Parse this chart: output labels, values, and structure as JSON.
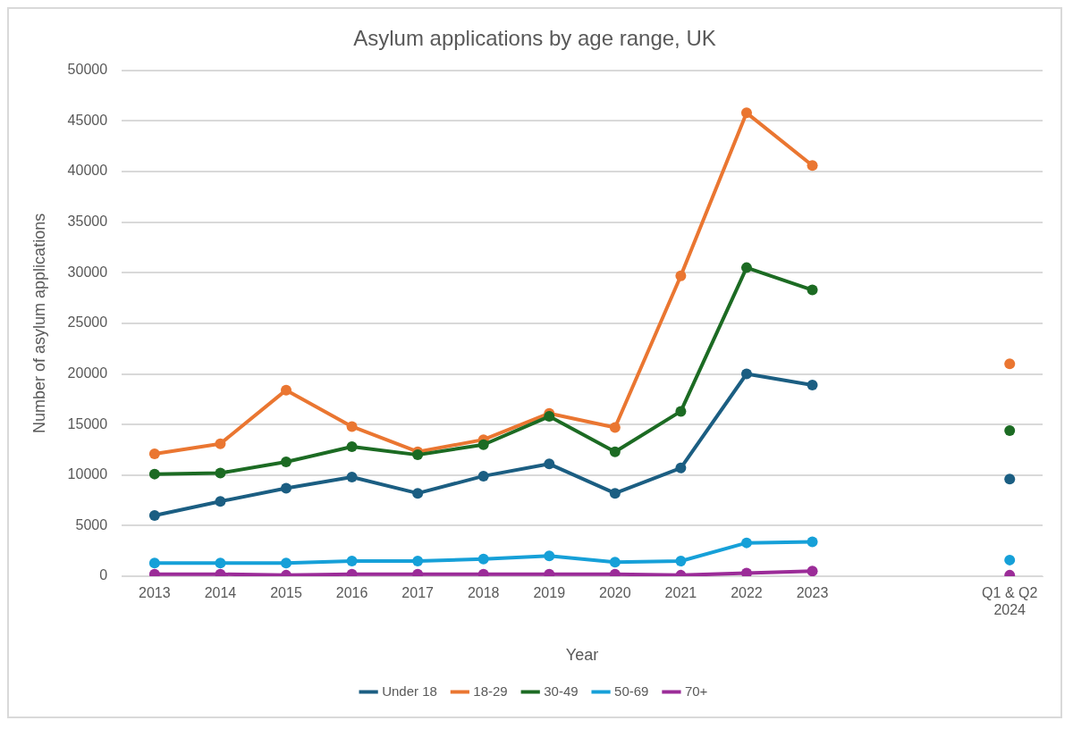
{
  "chart_data": {
    "type": "line",
    "title": "Asylum applications by age range, UK",
    "xlabel": "Year",
    "ylabel": "Number of asylum applications",
    "categories": [
      "2013",
      "2014",
      "2015",
      "2016",
      "2017",
      "2018",
      "2019",
      "2020",
      "2021",
      "2022",
      "2023",
      null,
      null,
      "Q1 & Q2 2024"
    ],
    "series": [
      {
        "name": "Under 18",
        "color": "#1b5e82",
        "values": [
          6000,
          7400,
          8700,
          9800,
          8200,
          9900,
          11100,
          8200,
          10700,
          20000,
          18900,
          null,
          null,
          9600
        ]
      },
      {
        "name": "18-29",
        "color": "#ea7631",
        "values": [
          12100,
          13100,
          18400,
          14800,
          12300,
          13500,
          16100,
          14700,
          29700,
          45800,
          40600,
          null,
          null,
          21000
        ]
      },
      {
        "name": "30-49",
        "color": "#1c6b23",
        "values": [
          10100,
          10200,
          11300,
          12800,
          12000,
          13000,
          15800,
          12300,
          16300,
          30500,
          28300,
          null,
          null,
          14400
        ]
      },
      {
        "name": "50-69",
        "color": "#16a0d8",
        "values": [
          1300,
          1300,
          1300,
          1500,
          1500,
          1700,
          2000,
          1400,
          1500,
          3300,
          3400,
          null,
          null,
          1600
        ]
      },
      {
        "name": "70+",
        "color": "#9b2c98",
        "values": [
          200,
          200,
          100,
          200,
          200,
          200,
          200,
          200,
          100,
          300,
          500,
          null,
          null,
          100
        ]
      }
    ],
    "ylim": [
      0,
      50000
    ],
    "yticks": [
      0,
      5000,
      10000,
      15000,
      20000,
      25000,
      30000,
      35000,
      40000,
      45000,
      50000
    ],
    "grid": "y",
    "legend": "bottom",
    "marker": "circle",
    "line_style": "solid"
  }
}
